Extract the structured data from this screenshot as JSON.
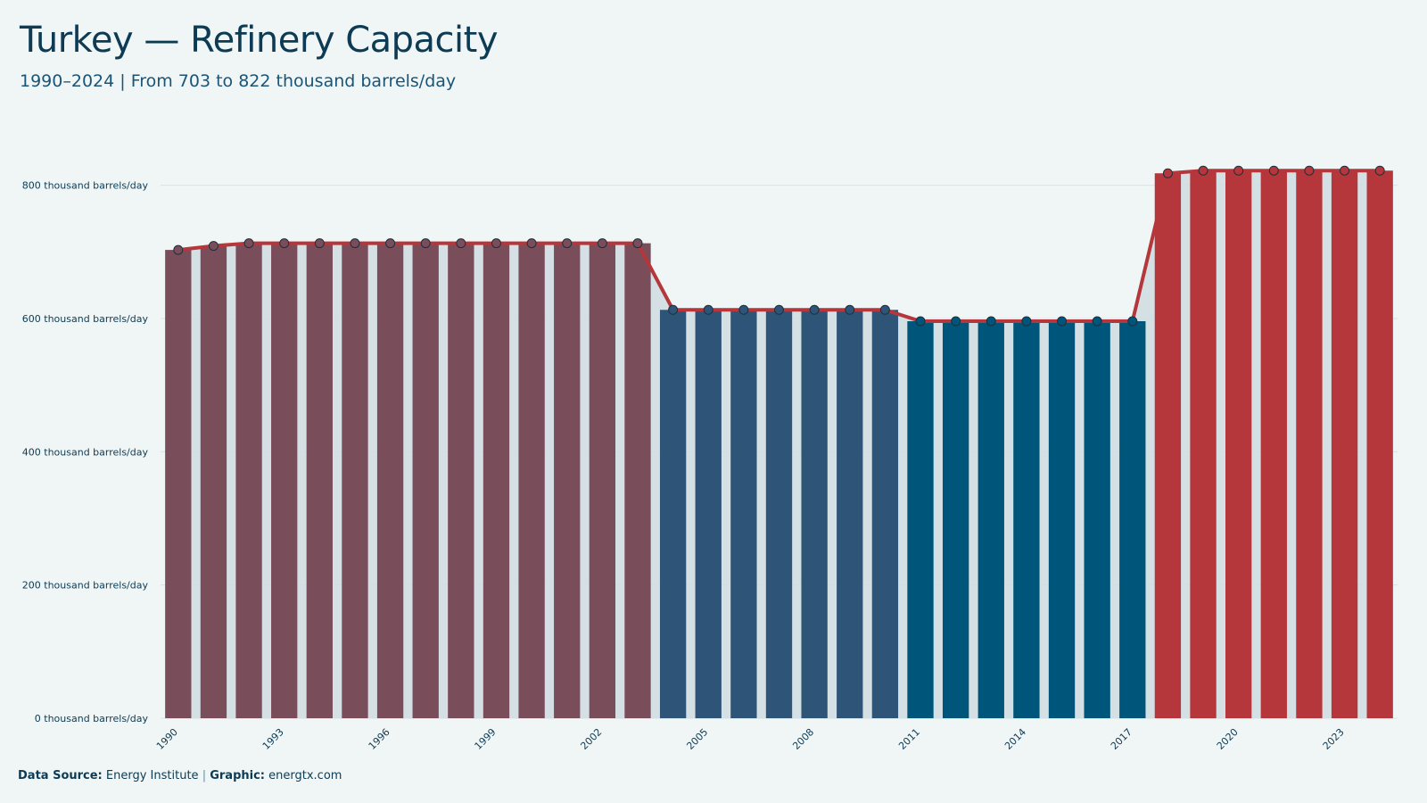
{
  "header": {
    "title": "Turkey — Refinery Capacity",
    "subtitle": "1990–2024 | From 703 to 822 thousand barrels/day"
  },
  "footer": {
    "source_label": "Data Source:",
    "source_value": "Energy Institute",
    "separator": "|",
    "graphic_label": "Graphic:",
    "graphic_value": "energtx.com"
  },
  "chart_data": {
    "type": "bar",
    "title": "Turkey — Refinery Capacity",
    "subtitle": "1990–2024 | From 703 to 822 thousand barrels/day",
    "xlabel": "",
    "ylabel": "",
    "unit": "thousand barrels/day",
    "ylim": [
      0,
      900
    ],
    "y_ticks": [
      0,
      200,
      400,
      600,
      800
    ],
    "y_tick_labels": [
      "0 thousand barrels/day",
      "200 thousand barrels/day",
      "400 thousand barrels/day",
      "600 thousand barrels/day",
      "800 thousand barrels/day"
    ],
    "x_tick_labels": [
      "1990",
      "1993",
      "1996",
      "1999",
      "2002",
      "2005",
      "2008",
      "2011",
      "2014",
      "2017",
      "2020",
      "2023"
    ],
    "categories": [
      "1990",
      "1991",
      "1992",
      "1993",
      "1994",
      "1995",
      "1996",
      "1997",
      "1998",
      "1999",
      "2000",
      "2001",
      "2002",
      "2003",
      "2004",
      "2005",
      "2006",
      "2007",
      "2008",
      "2009",
      "2010",
      "2011",
      "2012",
      "2013",
      "2014",
      "2015",
      "2016",
      "2017",
      "2018",
      "2019",
      "2020",
      "2021",
      "2022",
      "2023",
      "2024"
    ],
    "values": [
      703,
      709,
      713,
      713,
      713,
      713,
      713,
      713,
      713,
      713,
      713,
      713,
      713,
      713,
      613,
      613,
      613,
      613,
      613,
      613,
      613,
      596,
      596,
      596,
      596,
      596,
      596,
      596,
      818,
      822,
      822,
      822,
      822,
      822,
      822
    ],
    "grid": true,
    "legend": "none",
    "colors": {
      "period_1990_2003": "#7a4d5a",
      "period_2004_2010": "#2e5577",
      "period_2011_2017": "#00557b",
      "period_2018_2024": "#b5373b",
      "trend_line": "#b5373b",
      "area_fill": "#d2dee3",
      "grid": "#d8e2e5",
      "text": "#0d3b54"
    }
  }
}
